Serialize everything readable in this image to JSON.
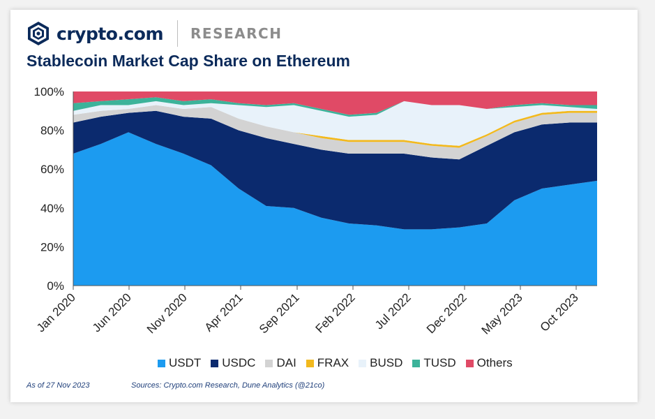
{
  "brand": {
    "name": "crypto.com",
    "section": "RESEARCH"
  },
  "title": "Stablecoin Market Cap Share on Ethereum",
  "footer": {
    "as_of": "As of 27 Nov 2023",
    "sources": "Sources: Crypto.com Research, Dune Analytics (@21co)"
  },
  "chart_data": {
    "type": "area",
    "stacked": true,
    "title": "Stablecoin Market Cap Share on Ethereum",
    "xlabel": "",
    "ylabel": "",
    "ylim": [
      0,
      100
    ],
    "yticks": [
      "0%",
      "20%",
      "40%",
      "60%",
      "80%",
      "100%"
    ],
    "xticks": [
      "Jan 2020",
      "Jun 2020",
      "Nov 2020",
      "Apr 2021",
      "Sep 2021",
      "Feb 2022",
      "Jul 2022",
      "Dec 2022",
      "May 2023",
      "Oct 2023"
    ],
    "x": [
      "Jan 2020",
      "Mar 2020",
      "Jun 2020",
      "Sep 2020",
      "Nov 2020",
      "Jan 2021",
      "Apr 2021",
      "Jun 2021",
      "Sep 2021",
      "Dec 2021",
      "Feb 2022",
      "May 2022",
      "Jul 2022",
      "Oct 2022",
      "Dec 2022",
      "Feb 2023",
      "May 2023",
      "Aug 2023",
      "Oct 2023",
      "Nov 2023"
    ],
    "series": [
      {
        "name": "USDT",
        "color": "#1c9bf0",
        "values": [
          68,
          73,
          79,
          73,
          68,
          62,
          50,
          41,
          40,
          35,
          32,
          31,
          29,
          29,
          30,
          32,
          44,
          50,
          52,
          54
        ]
      },
      {
        "name": "USDC",
        "color": "#0b2a6e",
        "values": [
          16,
          14,
          10,
          17,
          19,
          24,
          30,
          35,
          33,
          35,
          36,
          37,
          39,
          37,
          35,
          40,
          35,
          33,
          32,
          30
        ]
      },
      {
        "name": "DAI",
        "color": "#d3d3d3",
        "values": [
          4,
          3,
          2,
          3,
          4,
          6,
          6,
          6,
          6,
          6,
          6,
          6,
          6,
          6,
          6,
          5,
          5,
          5,
          5,
          5
        ]
      },
      {
        "name": "FRAX",
        "color": "#f2b91e",
        "values": [
          0,
          0,
          0,
          0,
          0,
          0,
          0,
          0,
          0,
          1,
          1,
          1,
          1,
          1,
          1,
          1,
          1,
          1,
          1,
          1
        ]
      },
      {
        "name": "BUSD",
        "color": "#e8f2fa",
        "values": [
          2,
          3,
          2,
          2,
          2,
          2,
          7,
          10,
          14,
          13,
          12,
          13,
          20,
          20,
          21,
          13,
          7,
          4,
          2,
          1
        ]
      },
      {
        "name": "TUSD",
        "color": "#3cb39a",
        "values": [
          4,
          2,
          3,
          2,
          2,
          2,
          1,
          1,
          1,
          1,
          1,
          1,
          0,
          0,
          0,
          0,
          1,
          1,
          1,
          2
        ]
      },
      {
        "name": "Others",
        "color": "#e04a66",
        "values": [
          6,
          5,
          4,
          3,
          5,
          4,
          6,
          7,
          6,
          9,
          12,
          11,
          5,
          7,
          7,
          9,
          7,
          6,
          7,
          7
        ]
      }
    ],
    "legend_position": "bottom"
  }
}
